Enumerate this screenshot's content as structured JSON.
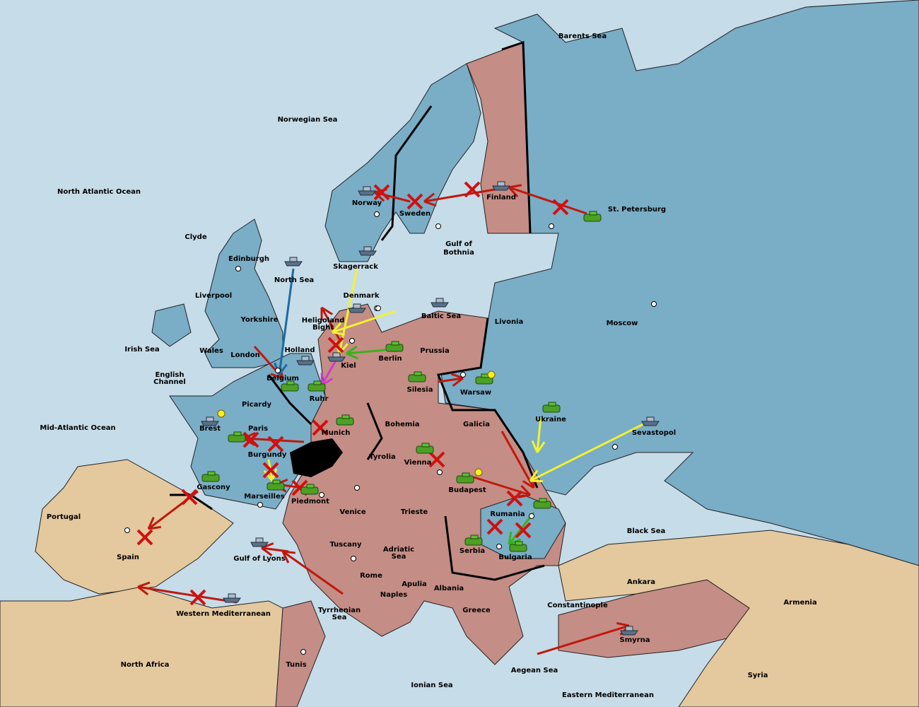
{
  "map": {
    "labels": [
      "Barents Sea",
      "Norwegian Sea",
      "North Atlantic Ocean",
      "Norway",
      "Sweden",
      "Finland",
      "St. Petersburg",
      "Clyde",
      "Edinburgh",
      "Gulf of",
      "Bothnia",
      "Skagerrack",
      "North Sea",
      "Liverpool",
      "Denmark",
      "Baltic Sea",
      "Livonia",
      "Moscow",
      "Yorkshire",
      "Heligoland",
      "Bight",
      "Irish Sea",
      "Wales",
      "London",
      "Holland",
      "Kiel",
      "Berlin",
      "Prussia",
      "English",
      "Channel",
      "Belgium",
      "Silesia",
      "Warsaw",
      "Ruhr",
      "Picardy",
      "Ukraine",
      "Mid-Atlantic Ocean",
      "Brest",
      "Paris",
      "Munich",
      "Bohemia",
      "Galicia",
      "Sevastopol",
      "Burgundy",
      "Tyrolia",
      "Vienna",
      "Budapest",
      "Gascony",
      "Marseilles",
      "Piedmont",
      "Rumania",
      "Portugal",
      "Venice",
      "Trieste",
      "Black Sea",
      "Serbia",
      "Bulgaria",
      "Tuscany",
      "Adriatic",
      "Sea",
      "Spain",
      "Gulf of Lyons",
      "Rome",
      "Apulia",
      "Ankara",
      "Albania",
      "Naples",
      "Armenia",
      "Constantinople",
      "Greece",
      "Tyrrhenian",
      "Sea",
      "Western Mediterranean",
      "Smyrna",
      "North Africa",
      "Tunis",
      "Aegean Sea",
      "Syria",
      "Ionian Sea",
      "Eastern Mediterranean"
    ]
  }
}
